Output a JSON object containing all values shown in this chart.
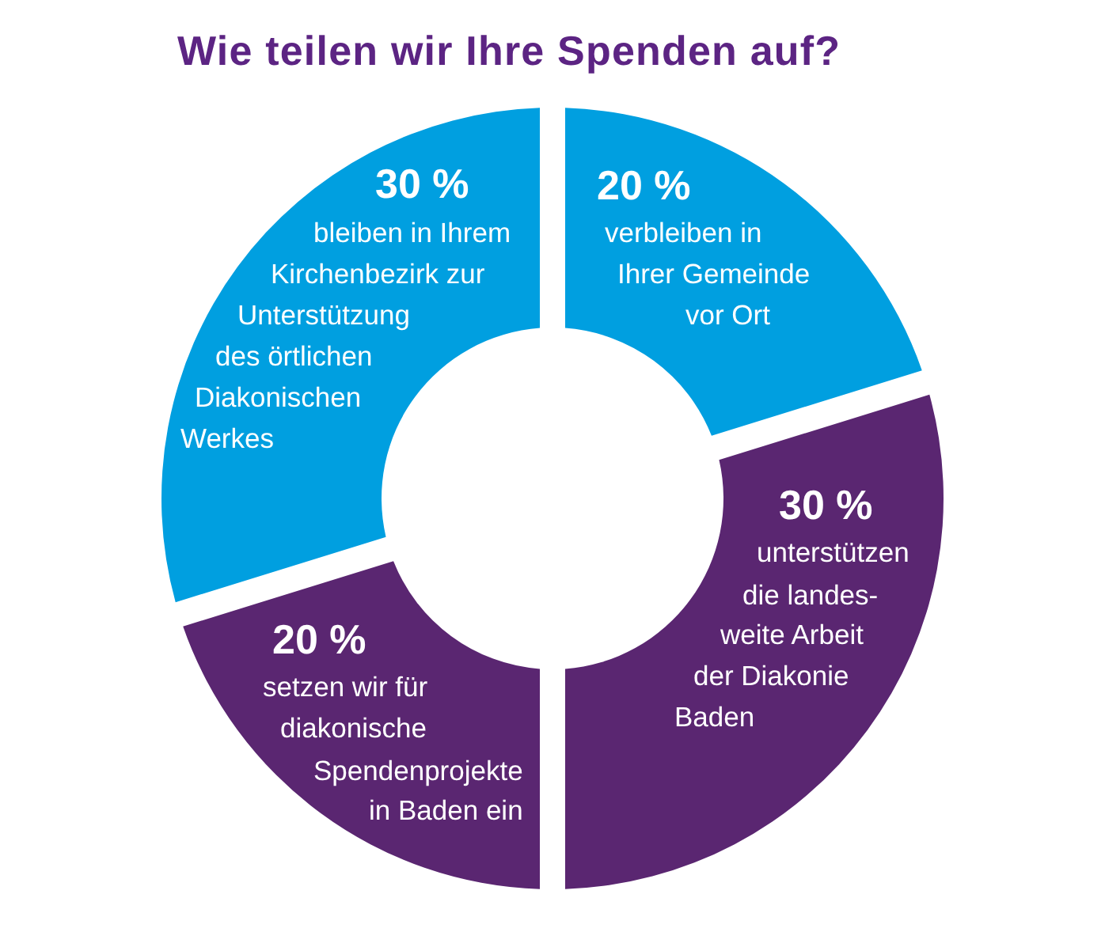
{
  "chart_data": {
    "type": "donut",
    "title": "Wie teilen wir Ihre Spenden auf?",
    "categories": [
      "verbleiben in\nIhrer Gemeinde\nvor Ort",
      "unterstützen\ndie landes-\nweite Arbeit\nder Diakonie\nBaden",
      "setzen wir für\ndiakonische\nSpendenprojekte\nin Baden ein",
      "bleiben in Ihrem\nKirchenbezirk zur\nUnterstützung\ndes örtlichen\nDiakonischen\nWerkes"
    ],
    "values": [
      20,
      30,
      20,
      30
    ],
    "colors": [
      "#009fe0",
      "#5a2671",
      "#5a2671",
      "#009fe0"
    ],
    "value_labels": [
      "20 %",
      "30 %",
      "20 %",
      "30 %"
    ]
  }
}
